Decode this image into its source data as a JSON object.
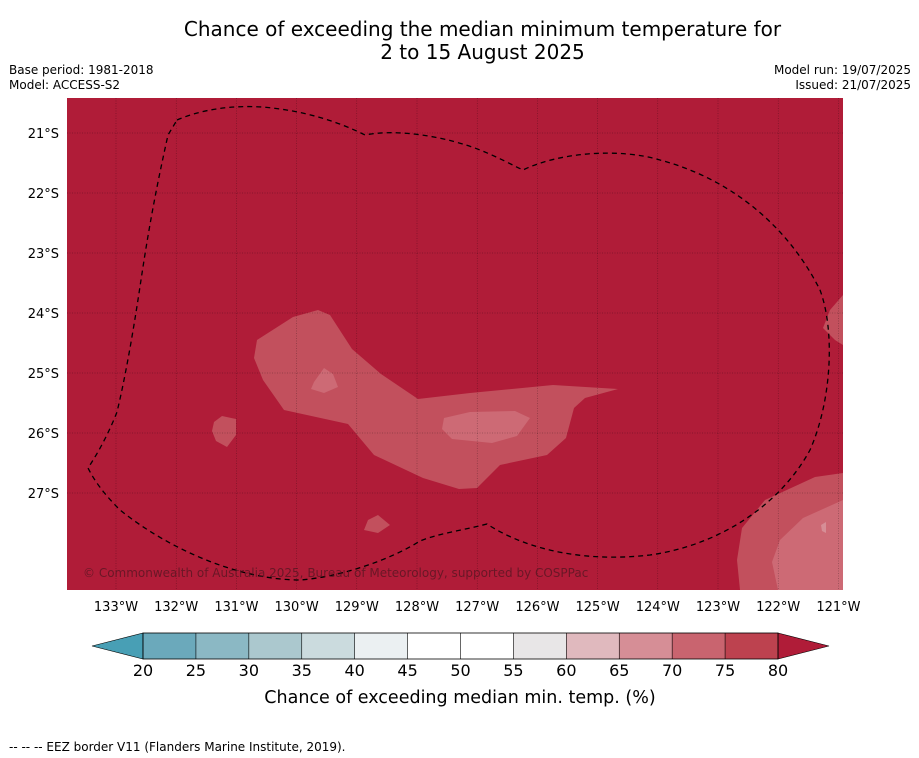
{
  "title_line1": "Chance of exceeding the median minimum temperature for",
  "title_line2": "2 to 15 August 2025",
  "meta_left": [
    "Base period: 1981-2018",
    "Model: ACCESS-S2"
  ],
  "meta_right": [
    "Model run: 19/07/2025",
    "Issued: 21/07/2025"
  ],
  "copyright": "© Commonwealth of Australia 2025, Bureau of Meteorology, supported by COSPPac",
  "footnote": "-- -- -- EEZ border V11 (Flanders Marine Institute, 2019).",
  "colorbar": {
    "label": "Chance of exceeding median min. temp. (%)",
    "ticks": [
      "20",
      "25",
      "30",
      "35",
      "40",
      "45",
      "50",
      "55",
      "60",
      "65",
      "70",
      "75",
      "80"
    ],
    "colors": [
      "#6ba9bb",
      "#8bb8c4",
      "#abc8ce",
      "#cbdbde",
      "#ebf0f2",
      "#ffffff",
      "#ffffff",
      "#e8e6e7",
      "#e0b9be",
      "#d68e96",
      "#c9646f",
      "#bd424f"
    ],
    "under_color": "#489fb5",
    "over_color": "#b01c38"
  },
  "map": {
    "background_color": "#b01c38",
    "lon_labels": [
      "133°W",
      "132°W",
      "131°W",
      "130°W",
      "129°W",
      "128°W",
      "127°W",
      "126°W",
      "125°W",
      "124°W",
      "123°W",
      "122°W",
      "121°W"
    ],
    "lat_labels": [
      "21°S",
      "22°S",
      "23°S",
      "24°S",
      "25°S",
      "26°S",
      "27°S"
    ]
  }
}
